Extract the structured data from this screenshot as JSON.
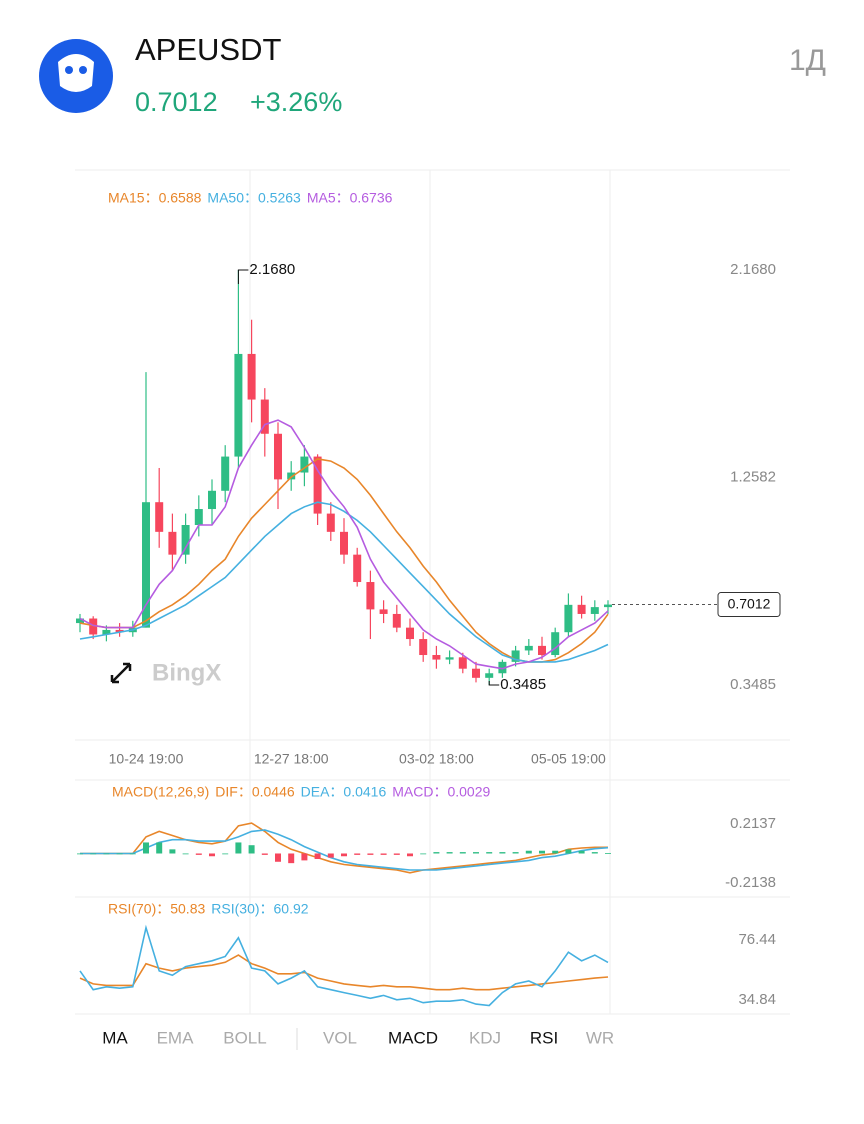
{
  "header": {
    "symbol": "APEUSDT",
    "price": "0.7012",
    "change": "+3.26%",
    "timeframe": "1Д"
  },
  "watermark": "BingX",
  "tabs": [
    {
      "label": "MA",
      "active": true
    },
    {
      "label": "EMA",
      "active": false
    },
    {
      "label": "BOLL",
      "active": false
    },
    {
      "label": "VOL",
      "active": false
    },
    {
      "label": "MACD",
      "active": true
    },
    {
      "label": "KDJ",
      "active": false
    },
    {
      "label": "RSI",
      "active": true
    },
    {
      "label": "WR",
      "active": false
    }
  ],
  "chart_data": [
    {
      "type": "candlestick",
      "categories": [
        null,
        null,
        null,
        null,
        null,
        "10-24 19:00",
        null,
        null,
        null,
        null,
        null,
        null,
        null,
        null,
        null,
        null,
        "12-27 18:00",
        null,
        null,
        null,
        null,
        null,
        null,
        null,
        null,
        null,
        null,
        "03-02 18:00",
        null,
        null,
        null,
        null,
        null,
        null,
        null,
        null,
        null,
        "05-05 19:00",
        null,
        null,
        null
      ],
      "open": [
        0.62,
        0.64,
        0.57,
        0.59,
        0.58,
        0.6,
        1.15,
        1.02,
        0.92,
        1.05,
        1.12,
        1.2,
        1.35,
        1.8,
        1.6,
        1.45,
        1.25,
        1.28,
        1.35,
        1.1,
        1.02,
        0.92,
        0.8,
        0.68,
        0.66,
        0.6,
        0.55,
        0.48,
        0.46,
        0.47,
        0.42,
        0.38,
        0.4,
        0.45,
        0.5,
        0.52,
        0.48,
        0.58,
        0.7,
        0.66,
        0.69
      ],
      "high": [
        0.66,
        0.65,
        0.61,
        0.62,
        0.63,
        1.72,
        1.3,
        1.1,
        1.1,
        1.18,
        1.25,
        1.4,
        2.168,
        1.95,
        1.65,
        1.5,
        1.33,
        1.4,
        1.36,
        1.15,
        1.08,
        0.95,
        0.85,
        0.72,
        0.7,
        0.64,
        0.58,
        0.52,
        0.5,
        0.49,
        0.45,
        0.42,
        0.46,
        0.52,
        0.55,
        0.56,
        0.6,
        0.75,
        0.74,
        0.72,
        0.72
      ],
      "low": [
        0.58,
        0.55,
        0.54,
        0.56,
        0.56,
        0.6,
        0.95,
        0.85,
        0.88,
        1.0,
        1.05,
        1.15,
        1.3,
        1.5,
        1.35,
        1.12,
        1.2,
        1.22,
        1.05,
        0.98,
        0.88,
        0.78,
        0.55,
        0.62,
        0.58,
        0.52,
        0.45,
        0.42,
        0.44,
        0.4,
        0.36,
        0.3485,
        0.38,
        0.43,
        0.48,
        0.46,
        0.47,
        0.56,
        0.64,
        0.63,
        0.66
      ],
      "close": [
        0.64,
        0.57,
        0.59,
        0.58,
        0.6,
        1.15,
        1.02,
        0.92,
        1.05,
        1.12,
        1.2,
        1.35,
        1.8,
        1.6,
        1.45,
        1.25,
        1.28,
        1.35,
        1.1,
        1.02,
        0.92,
        0.8,
        0.68,
        0.66,
        0.6,
        0.55,
        0.48,
        0.46,
        0.47,
        0.42,
        0.38,
        0.4,
        0.45,
        0.5,
        0.52,
        0.48,
        0.58,
        0.7,
        0.66,
        0.69,
        0.7012
      ],
      "up_color": "#2ebd85",
      "down_color": "#f6465d",
      "series": [
        {
          "name": "MA15：0.6588",
          "color": "#e8862a",
          "values": [
            0.62,
            0.61,
            0.6,
            0.6,
            0.6,
            0.63,
            0.67,
            0.7,
            0.74,
            0.79,
            0.85,
            0.9,
            1.0,
            1.08,
            1.14,
            1.2,
            1.26,
            1.3,
            1.34,
            1.33,
            1.3,
            1.25,
            1.18,
            1.1,
            1.02,
            0.95,
            0.87,
            0.8,
            0.72,
            0.65,
            0.58,
            0.53,
            0.49,
            0.46,
            0.45,
            0.45,
            0.46,
            0.49,
            0.53,
            0.58,
            0.6588
          ]
        },
        {
          "name": "MA50：0.5263",
          "color": "#45b0e0",
          "values": [
            0.55,
            0.56,
            0.57,
            0.58,
            0.59,
            0.61,
            0.64,
            0.67,
            0.7,
            0.74,
            0.78,
            0.82,
            0.88,
            0.94,
            1.0,
            1.05,
            1.1,
            1.13,
            1.15,
            1.14,
            1.11,
            1.07,
            1.02,
            0.96,
            0.9,
            0.84,
            0.78,
            0.72,
            0.66,
            0.61,
            0.56,
            0.52,
            0.48,
            0.46,
            0.45,
            0.45,
            0.45,
            0.46,
            0.48,
            0.5,
            0.5263
          ]
        },
        {
          "name": "MA5：0.6736",
          "color": "#b55ce0",
          "values": [
            0.64,
            0.61,
            0.6,
            0.6,
            0.6,
            0.7,
            0.79,
            0.85,
            0.95,
            1.05,
            1.05,
            1.13,
            1.3,
            1.4,
            1.49,
            1.51,
            1.48,
            1.39,
            1.29,
            1.2,
            1.13,
            1.04,
            0.9,
            0.8,
            0.73,
            0.66,
            0.59,
            0.55,
            0.52,
            0.48,
            0.44,
            0.43,
            0.42,
            0.44,
            0.45,
            0.47,
            0.51,
            0.56,
            0.59,
            0.62,
            0.6736
          ]
        }
      ],
      "ylim": [
        0.1074,
        2.6064
      ],
      "yticks": [
        {
          "value": 2.168,
          "label": "2.1680"
        },
        {
          "value": 1.2582,
          "label": "1.2582"
        },
        {
          "value": 0.3485,
          "label": "0.3485"
        }
      ],
      "annotations": [
        {
          "index": 12,
          "value": 2.168,
          "label": "2.1680"
        },
        {
          "index": 31,
          "value": 0.3485,
          "label": "0.3485"
        }
      ],
      "last_price": {
        "value": 0.7012,
        "label": "0.7012"
      }
    },
    {
      "type": "macd",
      "title": "MACD(12,26,9)",
      "series": [
        {
          "name": "DIF：0.0446",
          "color": "#e8862a",
          "style": "line",
          "values": [
            0,
            0,
            0,
            0,
            0,
            0.12,
            0.16,
            0.13,
            0.1,
            0.08,
            0.07,
            0.09,
            0.2,
            0.22,
            0.16,
            0.08,
            0.03,
            0.0,
            -0.03,
            -0.06,
            -0.08,
            -0.09,
            -0.1,
            -0.11,
            -0.12,
            -0.14,
            -0.12,
            -0.11,
            -0.1,
            -0.09,
            -0.08,
            -0.07,
            -0.06,
            -0.05,
            -0.03,
            -0.01,
            0.0,
            0.03,
            0.04,
            0.045,
            0.0446
          ]
        },
        {
          "name": "DEA：0.0416",
          "color": "#45b0e0",
          "style": "line",
          "values": [
            0,
            0,
            0,
            0,
            0,
            0.04,
            0.08,
            0.1,
            0.1,
            0.09,
            0.09,
            0.09,
            0.12,
            0.16,
            0.17,
            0.14,
            0.1,
            0.05,
            0.01,
            -0.03,
            -0.06,
            -0.08,
            -0.09,
            -0.1,
            -0.11,
            -0.12,
            -0.12,
            -0.12,
            -0.11,
            -0.1,
            -0.09,
            -0.08,
            -0.07,
            -0.06,
            -0.05,
            -0.03,
            -0.02,
            0.0,
            0.02,
            0.035,
            0.0416
          ]
        },
        {
          "name": "MACD：0.0029",
          "color": "#b55ce0",
          "style": "bar",
          "values": [
            0,
            0,
            0,
            0,
            0,
            0.08,
            0.08,
            0.03,
            0,
            -0.01,
            -0.02,
            0,
            0.08,
            0.06,
            -0.01,
            -0.06,
            -0.07,
            -0.05,
            -0.04,
            -0.03,
            -0.02,
            -0.01,
            -0.01,
            -0.01,
            -0.01,
            -0.02,
            0,
            0.01,
            0.01,
            0.01,
            0.01,
            0.01,
            0.01,
            0.01,
            0.02,
            0.02,
            0.02,
            0.03,
            0.02,
            0.01,
            0.0029
          ]
        }
      ],
      "ylim": [
        -0.3008,
        0.4963
      ],
      "yticks": [
        0.2137,
        -0.2138
      ]
    },
    {
      "type": "line",
      "series": [
        {
          "name": "RSI(70)：50.83",
          "color": "#e8862a",
          "values": [
            50,
            46,
            45,
            45,
            45,
            60,
            57,
            55,
            57,
            58,
            59,
            61,
            66,
            60,
            57,
            53,
            53,
            54,
            50,
            48,
            46,
            45,
            44,
            45,
            44,
            44,
            43,
            42,
            42,
            43,
            42,
            42,
            43,
            44,
            45,
            46,
            47,
            48,
            49,
            50,
            50.83
          ]
        },
        {
          "name": "RSI(30)：60.92",
          "color": "#45b0e0",
          "values": [
            55,
            42,
            44,
            43,
            44,
            85,
            55,
            52,
            58,
            60,
            62,
            65,
            78,
            57,
            55,
            46,
            50,
            55,
            44,
            42,
            40,
            38,
            36,
            38,
            35,
            36,
            33,
            34,
            34,
            35,
            32,
            31,
            40,
            46,
            48,
            44,
            55,
            68,
            62,
            66,
            60.92
          ]
        }
      ],
      "ylim": [
        24.44,
        104.2
      ],
      "yticks": [
        76.44,
        34.84
      ]
    }
  ]
}
